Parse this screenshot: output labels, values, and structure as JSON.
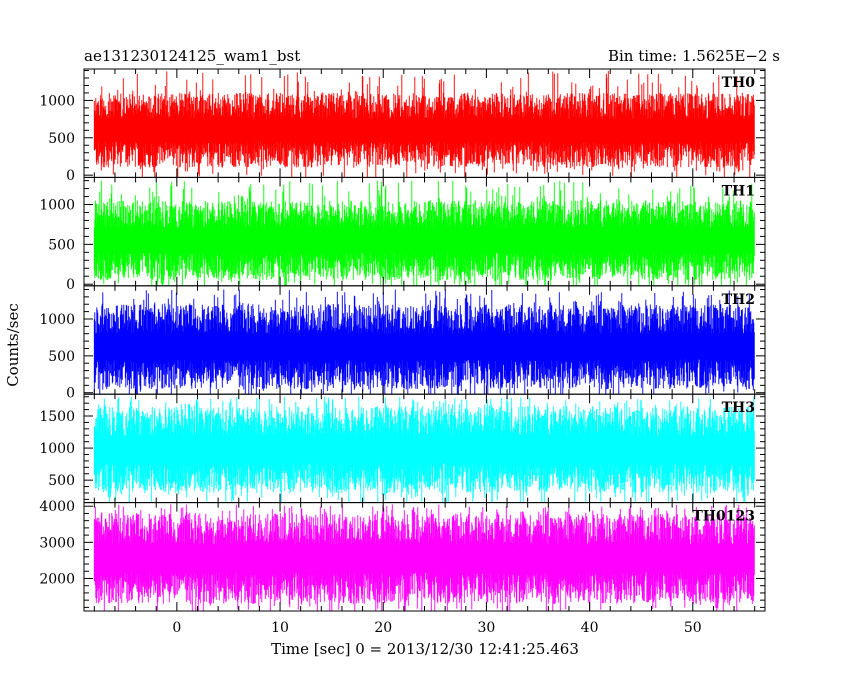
{
  "chart_data": {
    "type": "line",
    "title_left": "ae131230124125_wam1_bst",
    "title_right": "Bin time: 1.5625E−2 s",
    "xlabel": "Time [sec] 0 = 2013/12/30 12:41:25.463",
    "ylabel": "Counts/sec",
    "xlim": [
      -9,
      57
    ],
    "x_data_range": [
      -8,
      56
    ],
    "xticks": [
      0,
      10,
      20,
      30,
      40,
      50
    ],
    "shared_x": true,
    "grid": false,
    "panels": [
      {
        "name": "TH0",
        "color": "#ff0000",
        "ylim": [
          -30,
          1420
        ],
        "yticks": [
          0,
          500,
          1000
        ],
        "typical_range": [
          100,
          1100
        ],
        "peak_max": 1400,
        "mean": 580
      },
      {
        "name": "TH1",
        "color": "#00ff00",
        "ylim": [
          -20,
          1340
        ],
        "yticks": [
          0,
          500,
          1000
        ],
        "typical_range": [
          50,
          1050
        ],
        "peak_max": 1300,
        "mean": 500
      },
      {
        "name": "TH2",
        "color": "#0000ff",
        "ylim": [
          -20,
          1450
        ],
        "yticks": [
          0,
          500,
          1000
        ],
        "typical_range": [
          50,
          1200
        ],
        "peak_max": 1400,
        "mean": 600
      },
      {
        "name": "TH3",
        "color": "#00ffff",
        "ylim": [
          150,
          1840
        ],
        "yticks": [
          500,
          1000,
          1500
        ],
        "typical_range": [
          300,
          1650
        ],
        "peak_max": 1800,
        "mean": 1000
      },
      {
        "name": "TH0123",
        "color": "#ff00ff",
        "ylim": [
          1100,
          4100
        ],
        "yticks": [
          2000,
          3000,
          4000
        ],
        "typical_range": [
          1300,
          3800
        ],
        "peak_max": 4050,
        "mean": 2500
      }
    ]
  }
}
